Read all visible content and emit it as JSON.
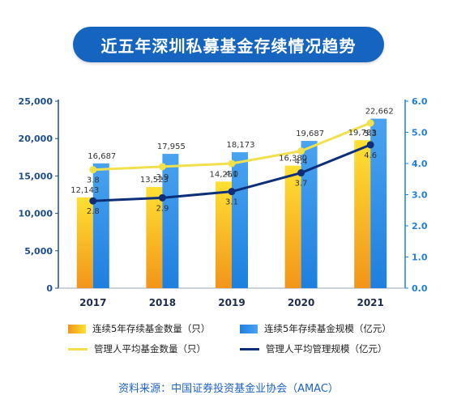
{
  "title": "近五年深圳私募基金存续情况趋势",
  "source": "资料来源：中国证券投资基金业协会（AMAC）",
  "colors": {
    "banner": "#1565c0",
    "bar_count_top": "#ffe033",
    "bar_count_bottom": "#f2951a",
    "bar_scale_top": "#4aa3f0",
    "bar_scale_bottom": "#1e7fde",
    "line_count": "#f2e14e",
    "line_scale": "#0d2f7a",
    "axis_left": "#1f4e8c",
    "axis_right": "#1e7fde"
  },
  "legend": [
    {
      "label": "连续5年存续基金数量（只）",
      "kind": "bar",
      "series": 0
    },
    {
      "label": "连续5年存续基金规模（亿元）",
      "kind": "bar",
      "series": 1
    },
    {
      "label": "管理人平均基金数量（只）",
      "kind": "line",
      "series": 2
    },
    {
      "label": "管理人平均管理规模（亿元）",
      "kind": "line",
      "series": 3
    }
  ],
  "chart_data": {
    "type": "bar",
    "categories": [
      "2017",
      "2018",
      "2019",
      "2020",
      "2021"
    ],
    "ylim_left": [
      0,
      25000
    ],
    "yticks_left": [
      "0",
      "5,000",
      "10,000",
      "15,000",
      "20,000",
      "25,000"
    ],
    "ylim_right": [
      0,
      6
    ],
    "yticks_right": [
      "0.0",
      "1.0",
      "2.0",
      "3.0",
      "4.0",
      "5.0",
      "6.0"
    ],
    "series": [
      {
        "name": "连续5年存续基金数量（只）",
        "type": "bar",
        "axis": "left",
        "values": [
          12143,
          13523,
          14251,
          16380,
          19783
        ],
        "labels": [
          "12,143",
          "13,523",
          "14,251",
          "16,380",
          "19,783"
        ]
      },
      {
        "name": "连续5年存续基金规模（亿元）",
        "type": "bar",
        "axis": "left",
        "values": [
          16687,
          17955,
          18173,
          19687,
          22662
        ],
        "labels": [
          "16,687",
          "17,955",
          "18,173",
          "19,687",
          "22,662"
        ]
      },
      {
        "name": "管理人平均基金数量（只）",
        "type": "line",
        "axis": "right",
        "values": [
          3.8,
          3.9,
          4.0,
          4.4,
          5.3
        ],
        "labels": [
          "3.8",
          "3.9",
          "4.0",
          "4.4",
          "5.3"
        ]
      },
      {
        "name": "管理人平均管理规模（亿元）",
        "type": "line",
        "axis": "right",
        "values": [
          2.8,
          2.9,
          3.1,
          3.7,
          4.6
        ],
        "labels": [
          "2.8",
          "2.9",
          "3.1",
          "3.7",
          "4.6"
        ]
      }
    ]
  }
}
